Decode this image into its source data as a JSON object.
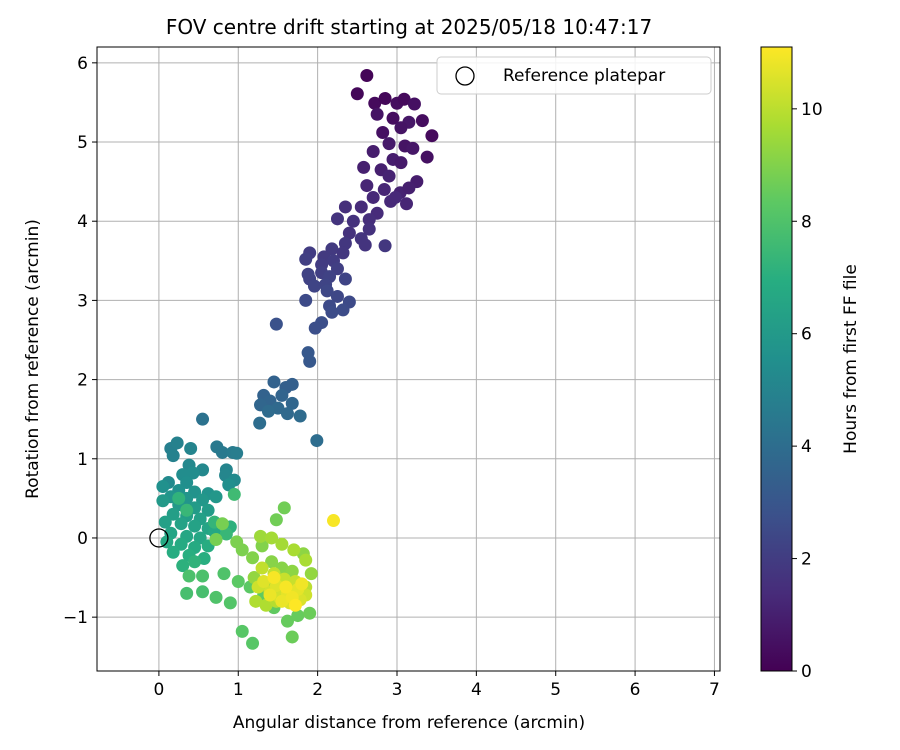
{
  "chart_data": {
    "type": "scatter",
    "title": "FOV centre drift starting at 2025/05/18 10:47:17",
    "xlabel": "Angular distance from reference (arcmin)",
    "ylabel": "Rotation from reference (arcmin)",
    "xlim": [
      -0.78,
      7.07
    ],
    "ylim": [
      -1.68,
      6.2
    ],
    "xticks": [
      0,
      1,
      2,
      3,
      4,
      5,
      6,
      7
    ],
    "yticks": [
      -1,
      0,
      1,
      2,
      3,
      4,
      5,
      6
    ],
    "xtick_labels": [
      "0",
      "1",
      "2",
      "3",
      "4",
      "5",
      "6",
      "7"
    ],
    "ytick_labels": [
      "−1",
      "0",
      "1",
      "2",
      "3",
      "4",
      "5",
      "6"
    ],
    "grid": true,
    "legend": {
      "placement": "top-right",
      "entries": [
        {
          "label": "Reference platepar",
          "marker": "open-circle"
        }
      ]
    },
    "reference_point": {
      "x": 0,
      "y": 0
    },
    "colorbar": {
      "label": "Hours from first FF file",
      "colormap": "viridis",
      "range": [
        0,
        11.1
      ],
      "ticks": [
        0,
        2,
        4,
        6,
        8,
        10
      ],
      "tick_labels": [
        "0",
        "2",
        "4",
        "6",
        "8",
        "10"
      ]
    },
    "points": [
      [
        2.62,
        5.84,
        0.1
      ],
      [
        2.5,
        5.61,
        0.2
      ],
      [
        2.72,
        5.49,
        0.3
      ],
      [
        2.85,
        5.55,
        0.2
      ],
      [
        3.0,
        5.49,
        0.4
      ],
      [
        3.09,
        5.54,
        0.3
      ],
      [
        3.22,
        5.48,
        0.5
      ],
      [
        2.75,
        5.35,
        0.6
      ],
      [
        2.95,
        5.3,
        0.4
      ],
      [
        3.15,
        5.25,
        0.7
      ],
      [
        2.82,
        5.12,
        0.5
      ],
      [
        3.05,
        5.18,
        0.6
      ],
      [
        3.32,
        5.27,
        0.4
      ],
      [
        2.9,
        4.98,
        0.8
      ],
      [
        3.1,
        4.95,
        0.6
      ],
      [
        3.44,
        5.08,
        0.3
      ],
      [
        2.7,
        4.88,
        0.9
      ],
      [
        2.95,
        4.78,
        0.9
      ],
      [
        3.2,
        4.92,
        0.7
      ],
      [
        3.38,
        4.81,
        0.5
      ],
      [
        2.58,
        4.68,
        1.0
      ],
      [
        2.8,
        4.65,
        1.0
      ],
      [
        3.05,
        4.74,
        0.8
      ],
      [
        3.25,
        4.5,
        0.9
      ],
      [
        2.9,
        4.57,
        1.1
      ],
      [
        2.62,
        4.45,
        1.2
      ],
      [
        2.84,
        4.4,
        1.2
      ],
      [
        3.04,
        4.36,
        1.1
      ],
      [
        3.15,
        4.42,
        1.0
      ],
      [
        2.7,
        4.3,
        1.3
      ],
      [
        2.92,
        4.25,
        1.3
      ],
      [
        3.12,
        4.22,
        1.2
      ],
      [
        2.55,
        4.18,
        1.4
      ],
      [
        2.75,
        4.1,
        1.4
      ],
      [
        2.98,
        4.3,
        1.3
      ],
      [
        2.35,
        4.18,
        1.5
      ],
      [
        2.65,
        4.02,
        1.5
      ],
      [
        2.45,
        4.0,
        1.6
      ],
      [
        2.65,
        3.9,
        1.6
      ],
      [
        2.4,
        3.85,
        1.6
      ],
      [
        2.25,
        4.03,
        1.7
      ],
      [
        2.55,
        3.78,
        1.7
      ],
      [
        2.35,
        3.72,
        1.8
      ],
      [
        2.6,
        3.7,
        1.7
      ],
      [
        2.85,
        3.69,
        1.8
      ],
      [
        2.18,
        3.65,
        1.9
      ],
      [
        2.32,
        3.6,
        1.8
      ],
      [
        2.08,
        3.55,
        1.9
      ],
      [
        1.9,
        3.6,
        2.0
      ],
      [
        2.2,
        3.5,
        2.0
      ],
      [
        2.05,
        3.45,
        2.0
      ],
      [
        1.85,
        3.52,
        2.1
      ],
      [
        2.25,
        3.4,
        2.1
      ],
      [
        2.05,
        3.35,
        2.1
      ],
      [
        1.88,
        3.33,
        2.2
      ],
      [
        1.9,
        3.27,
        2.2
      ],
      [
        2.15,
        3.3,
        2.2
      ],
      [
        2.35,
        3.27,
        2.3
      ],
      [
        2.1,
        3.2,
        2.3
      ],
      [
        1.96,
        3.18,
        2.3
      ],
      [
        2.12,
        3.12,
        2.4
      ],
      [
        2.25,
        3.05,
        2.4
      ],
      [
        2.4,
        2.98,
        2.5
      ],
      [
        2.15,
        2.93,
        2.5
      ],
      [
        1.85,
        3.0,
        2.5
      ],
      [
        2.32,
        2.88,
        2.6
      ],
      [
        2.18,
        2.85,
        2.6
      ],
      [
        2.05,
        2.72,
        2.7
      ],
      [
        1.97,
        2.65,
        2.7
      ],
      [
        1.48,
        2.7,
        2.8
      ],
      [
        1.88,
        2.34,
        3.1
      ],
      [
        1.9,
        2.23,
        3.1
      ],
      [
        1.6,
        1.9,
        3.4
      ],
      [
        1.68,
        1.94,
        3.4
      ],
      [
        1.45,
        1.97,
        3.5
      ],
      [
        1.32,
        1.8,
        3.5
      ],
      [
        1.55,
        1.8,
        3.6
      ],
      [
        1.4,
        1.73,
        3.6
      ],
      [
        1.28,
        1.68,
        3.7
      ],
      [
        1.68,
        1.7,
        3.7
      ],
      [
        1.5,
        1.64,
        3.8
      ],
      [
        1.62,
        1.57,
        3.8
      ],
      [
        1.38,
        1.6,
        3.9
      ],
      [
        1.78,
        1.54,
        3.9
      ],
      [
        1.27,
        1.45,
        4.0
      ],
      [
        1.99,
        1.23,
        4.0
      ],
      [
        0.55,
        1.5,
        4.2
      ],
      [
        0.73,
        1.15,
        4.5
      ],
      [
        0.8,
        1.08,
        4.5
      ],
      [
        0.93,
        1.08,
        4.6
      ],
      [
        0.98,
        1.07,
        4.7
      ],
      [
        0.15,
        1.13,
        4.8
      ],
      [
        0.23,
        1.2,
        4.9
      ],
      [
        0.18,
        1.04,
        4.9
      ],
      [
        0.4,
        1.13,
        5.0
      ],
      [
        0.85,
        0.86,
        5.0
      ],
      [
        0.84,
        0.79,
        5.1
      ],
      [
        0.38,
        0.92,
        5.2
      ],
      [
        0.55,
        0.86,
        5.2
      ],
      [
        0.95,
        0.73,
        5.3
      ],
      [
        0.12,
        0.7,
        5.3
      ],
      [
        0.3,
        0.8,
        5.4
      ],
      [
        0.43,
        0.82,
        5.4
      ],
      [
        0.88,
        0.67,
        5.5
      ],
      [
        0.35,
        0.7,
        5.5
      ],
      [
        0.05,
        0.65,
        5.6
      ],
      [
        0.25,
        0.6,
        5.6
      ],
      [
        0.45,
        0.58,
        5.7
      ],
      [
        0.62,
        0.56,
        5.7
      ],
      [
        0.15,
        0.52,
        5.8
      ],
      [
        0.35,
        0.5,
        5.8
      ],
      [
        0.55,
        0.48,
        5.9
      ],
      [
        0.72,
        0.52,
        5.9
      ],
      [
        0.05,
        0.47,
        6.0
      ],
      [
        0.25,
        0.42,
        6.0
      ],
      [
        0.45,
        0.38,
        6.1
      ],
      [
        0.62,
        0.35,
        6.1
      ],
      [
        0.18,
        0.3,
        6.2
      ],
      [
        0.35,
        0.28,
        6.2
      ],
      [
        0.52,
        0.24,
        6.3
      ],
      [
        0.08,
        0.2,
        6.3
      ],
      [
        0.28,
        0.18,
        6.4
      ],
      [
        0.45,
        0.15,
        6.4
      ],
      [
        0.62,
        0.12,
        6.5
      ],
      [
        0.15,
        0.06,
        6.5
      ],
      [
        0.35,
        0.02,
        6.6
      ],
      [
        0.52,
        0.0,
        6.6
      ],
      [
        0.7,
        0.08,
        6.7
      ],
      [
        0.1,
        -0.05,
        6.7
      ],
      [
        0.28,
        -0.08,
        6.8
      ],
      [
        0.45,
        -0.12,
        6.8
      ],
      [
        0.62,
        -0.1,
        6.9
      ],
      [
        0.18,
        -0.18,
        6.9
      ],
      [
        0.38,
        -0.22,
        7.0
      ],
      [
        0.57,
        -0.26,
        7.0
      ],
      [
        0.3,
        -0.35,
        7.1
      ],
      [
        0.9,
        0.14,
        7.1
      ],
      [
        0.25,
        0.5,
        7.2
      ],
      [
        0.45,
        -0.3,
        7.2
      ],
      [
        0.7,
        0.2,
        7.3
      ],
      [
        0.35,
        0.35,
        7.4
      ],
      [
        0.85,
        0.05,
        7.4
      ],
      [
        0.95,
        0.55,
        7.6
      ],
      [
        0.35,
        -0.7,
        7.8
      ],
      [
        0.55,
        -0.68,
        7.8
      ],
      [
        0.38,
        -0.48,
        7.9
      ],
      [
        0.55,
        -0.48,
        7.9
      ],
      [
        0.82,
        -0.45,
        8.0
      ],
      [
        0.72,
        -0.75,
        8.0
      ],
      [
        0.9,
        -0.82,
        8.1
      ],
      [
        1.05,
        -1.18,
        8.2
      ],
      [
        1.18,
        -1.33,
        8.2
      ],
      [
        1.0,
        -0.55,
        8.3
      ],
      [
        1.15,
        -0.62,
        8.3
      ],
      [
        1.32,
        -0.72,
        8.4
      ],
      [
        1.45,
        -0.88,
        8.4
      ],
      [
        1.62,
        -1.05,
        8.5
      ],
      [
        1.75,
        -0.98,
        8.5
      ],
      [
        1.9,
        -0.95,
        8.6
      ],
      [
        1.68,
        -1.25,
        8.6
      ],
      [
        1.58,
        0.38,
        8.7
      ],
      [
        1.48,
        0.23,
        8.7
      ],
      [
        0.72,
        -0.02,
        8.8
      ],
      [
        0.8,
        0.18,
        8.8
      ],
      [
        0.98,
        -0.05,
        8.9
      ],
      [
        1.05,
        -0.15,
        8.9
      ],
      [
        1.18,
        -0.25,
        9.0
      ],
      [
        1.3,
        -0.1,
        9.0
      ],
      [
        1.42,
        -0.3,
        9.1
      ],
      [
        1.55,
        -0.38,
        9.1
      ],
      [
        1.68,
        -0.42,
        9.2
      ],
      [
        1.82,
        -0.2,
        9.2
      ],
      [
        1.92,
        -0.45,
        9.3
      ],
      [
        1.2,
        -0.5,
        9.3
      ],
      [
        1.35,
        -0.58,
        9.4
      ],
      [
        1.5,
        -0.65,
        9.4
      ],
      [
        1.65,
        -0.6,
        9.5
      ],
      [
        1.28,
        0.02,
        9.5
      ],
      [
        1.42,
        0.0,
        9.6
      ],
      [
        1.55,
        -0.08,
        9.6
      ],
      [
        1.7,
        -0.15,
        9.7
      ],
      [
        1.85,
        -0.28,
        9.7
      ],
      [
        1.22,
        -0.8,
        9.8
      ],
      [
        1.35,
        -0.85,
        9.8
      ],
      [
        1.48,
        -0.8,
        9.9
      ],
      [
        1.6,
        -0.78,
        9.9
      ],
      [
        1.72,
        -0.7,
        10.0
      ],
      [
        1.85,
        -0.62,
        10.0
      ],
      [
        1.3,
        -0.38,
        10.1
      ],
      [
        1.45,
        -0.45,
        10.1
      ],
      [
        1.58,
        -0.52,
        10.2
      ],
      [
        1.72,
        -0.55,
        10.2
      ],
      [
        1.85,
        -0.72,
        10.3
      ],
      [
        1.25,
        -0.62,
        10.3
      ],
      [
        1.4,
        -0.68,
        10.4
      ],
      [
        1.52,
        -0.75,
        10.4
      ],
      [
        1.65,
        -0.82,
        10.5
      ],
      [
        1.78,
        -0.78,
        10.5
      ],
      [
        1.32,
        -0.55,
        10.6
      ],
      [
        1.48,
        -0.6,
        10.6
      ],
      [
        1.62,
        -0.7,
        10.7
      ],
      [
        1.75,
        -0.65,
        10.7
      ],
      [
        1.4,
        -0.72,
        10.8
      ],
      [
        1.55,
        -0.8,
        10.8
      ],
      [
        1.68,
        -0.75,
        10.9
      ],
      [
        1.8,
        -0.58,
        10.9
      ],
      [
        1.45,
        -0.5,
        11.0
      ],
      [
        1.6,
        -0.62,
        11.0
      ],
      [
        2.2,
        0.22,
        11.0
      ],
      [
        1.72,
        -0.85,
        11.1
      ]
    ]
  }
}
